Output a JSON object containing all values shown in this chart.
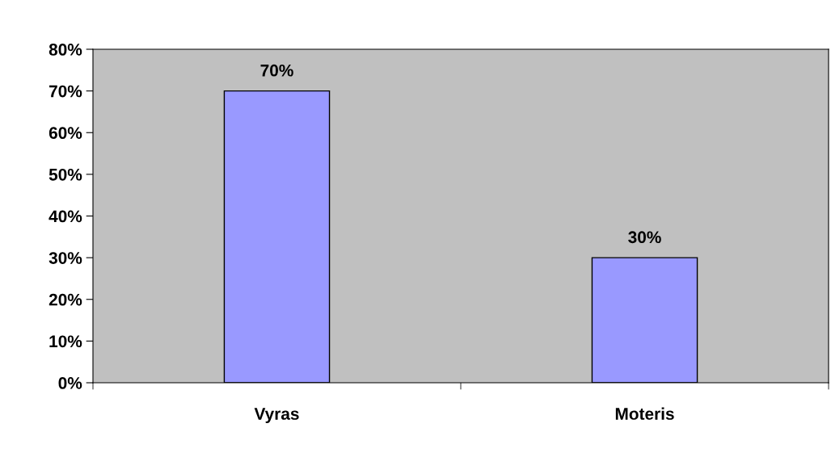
{
  "chart_data": {
    "type": "bar",
    "categories": [
      "Vyras",
      "Moteris"
    ],
    "values": [
      70,
      30
    ],
    "color": "#9999ff",
    "value_labels": [
      "70%",
      "30%"
    ],
    "ylim": [
      0,
      80
    ],
    "yticks": [
      {
        "value": 0,
        "label": "0%"
      },
      {
        "value": 10,
        "label": "10%"
      },
      {
        "value": 20,
        "label": "20%"
      },
      {
        "value": 30,
        "label": "30%"
      },
      {
        "value": 40,
        "label": "40%"
      },
      {
        "value": 50,
        "label": "50%"
      },
      {
        "value": 60,
        "label": "60%"
      },
      {
        "value": 70,
        "label": "70%"
      },
      {
        "value": 80,
        "label": "80%"
      }
    ],
    "grid": false,
    "legend": false
  }
}
